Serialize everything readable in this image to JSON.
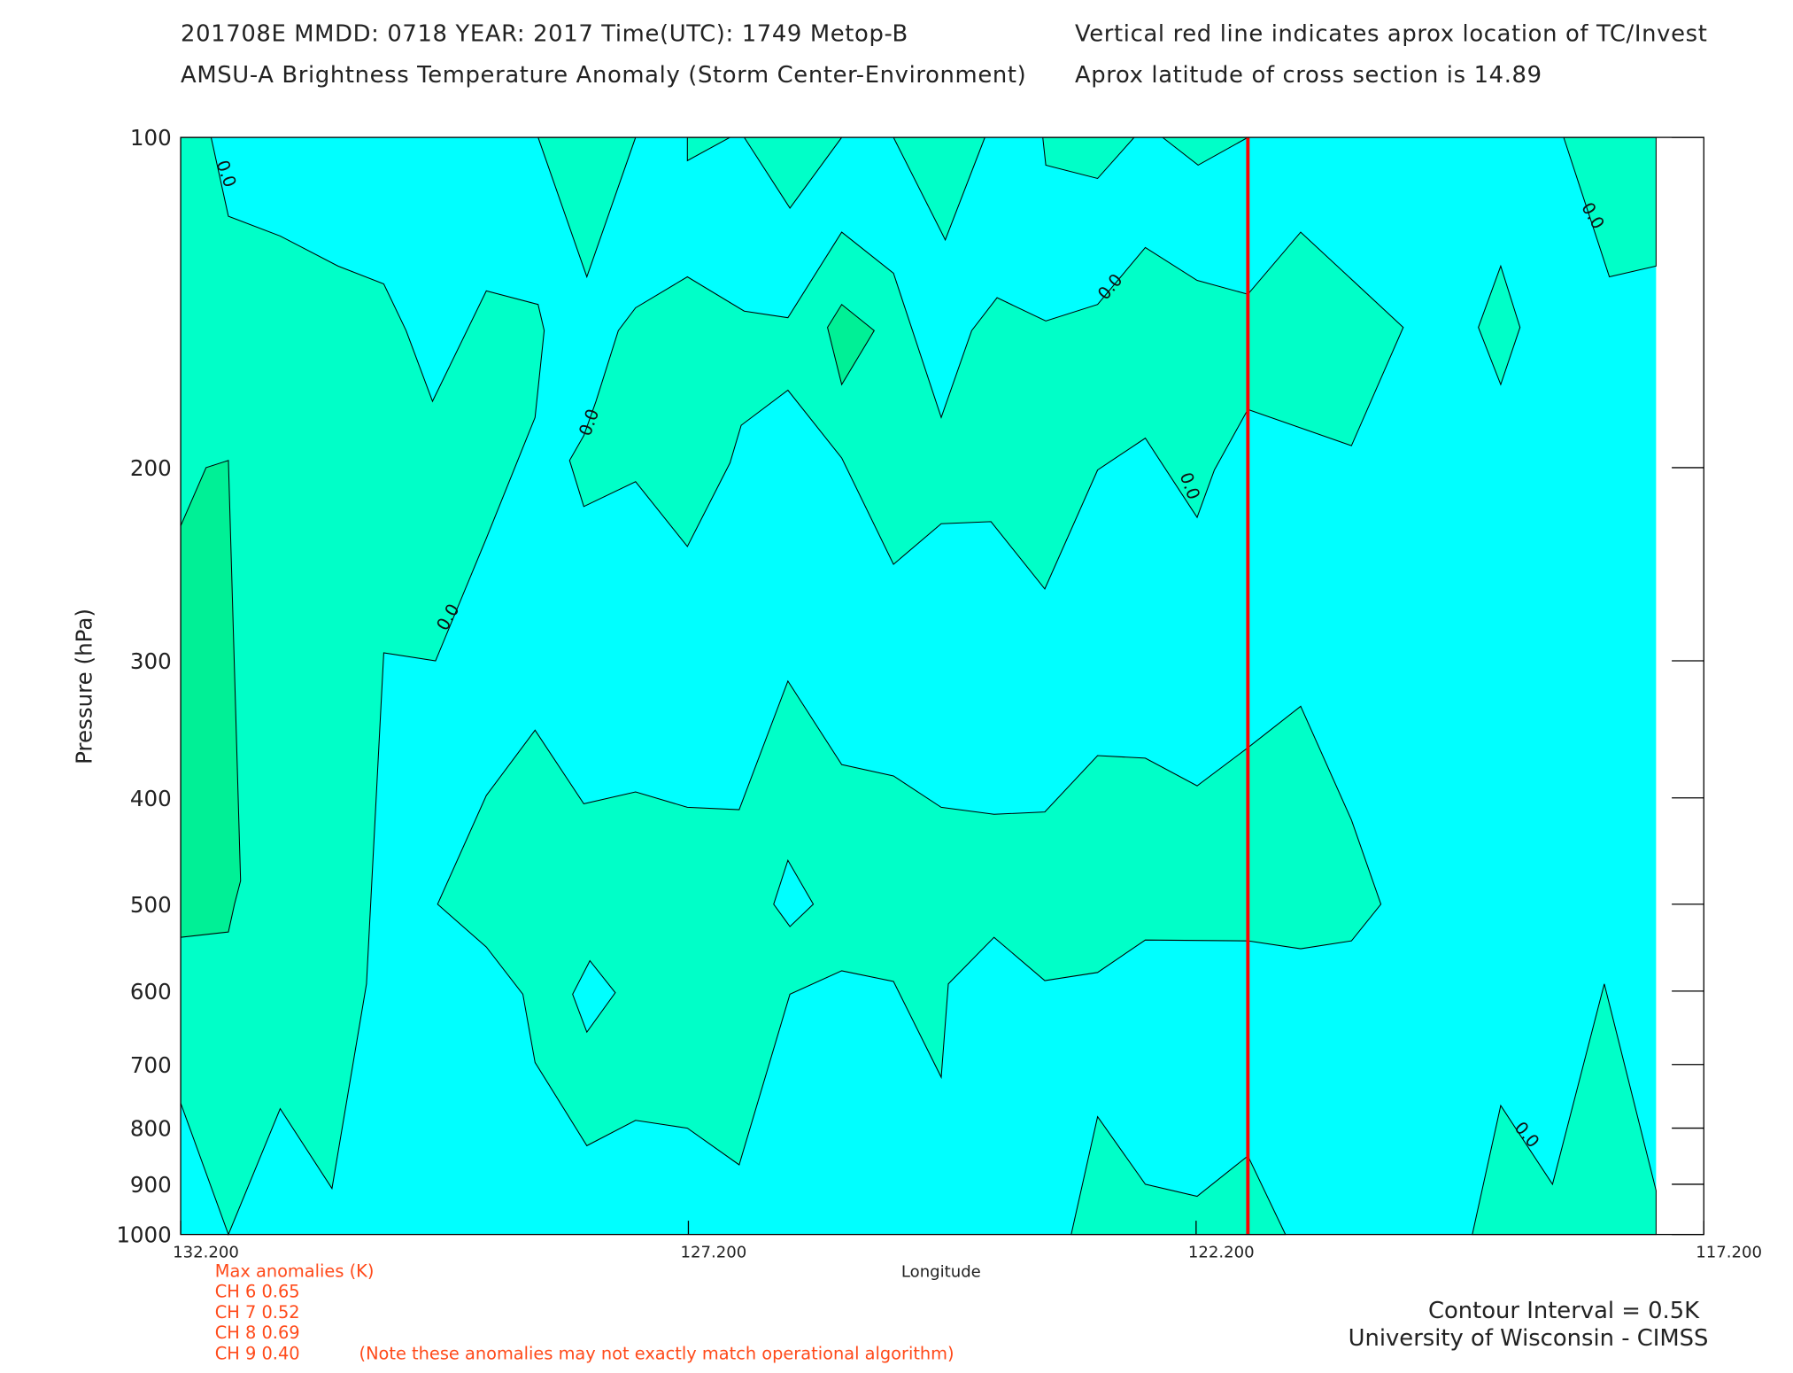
{
  "chart_data": {
    "type": "contour",
    "title": "201708E  MMDD: 0718 YEAR: 2017 Time(UTC): 1749 Metop-B",
    "subtitle": "AMSU-A Brightness Temperature Anomaly (Storm Center-Environment)",
    "note_line": "Vertical red line indicates aprox location of TC/Invest",
    "note_latitude": "Aprox latitude of cross section is 14.89",
    "x_label": "Longitude",
    "y_label": "Pressure (hPa)",
    "xlim": [
      132.2,
      117.2
    ],
    "xticks": [
      {
        "value": 132.2,
        "label": "132.200"
      },
      {
        "value": 127.2,
        "label": "127.200"
      },
      {
        "value": 122.2,
        "label": "122.200"
      },
      {
        "value": 117.2,
        "label": "117.200"
      }
    ],
    "ylim": [
      100,
      1000
    ],
    "y_scale": "log",
    "y_reversed": true,
    "yticks": [
      100,
      200,
      300,
      400,
      500,
      600,
      700,
      800,
      900,
      1000
    ],
    "field_extent": [
      132.2,
      117.67
    ],
    "background_color": "#00ffff",
    "regions": [
      {
        "level": 0.0,
        "color": "#00ffc8",
        "points": [
          [
            132.2,
            100
          ],
          [
            131.9,
            100
          ],
          [
            131.73,
            118
          ],
          [
            131.22,
            123
          ],
          [
            130.65,
            131
          ],
          [
            130.2,
            136
          ],
          [
            129.98,
            150
          ],
          [
            129.72,
            174
          ],
          [
            129.19,
            138
          ],
          [
            128.68,
            142
          ],
          [
            128.62,
            150
          ],
          [
            128.71,
            180
          ],
          [
            129.19,
            232
          ],
          [
            129.69,
            300
          ],
          [
            130.2,
            295
          ],
          [
            130.37,
            591
          ],
          [
            130.71,
            908
          ],
          [
            131.22,
            768
          ],
          [
            131.73,
            1000
          ],
          [
            132.2,
            759
          ]
        ]
      },
      {
        "level": 0.5,
        "color": "#00f096",
        "points": [
          [
            132.2,
            226
          ],
          [
            131.95,
            200
          ],
          [
            131.73,
            197
          ],
          [
            131.61,
            476
          ],
          [
            131.67,
            500
          ],
          [
            131.73,
            530
          ],
          [
            132.2,
            536
          ]
        ]
      },
      {
        "level": 0.0,
        "color": "#00ffc8",
        "points": [
          [
            128.68,
            100
          ],
          [
            128.2,
            134
          ],
          [
            127.72,
            100
          ]
        ]
      },
      {
        "level": 0.0,
        "color": "#00ffc8",
        "points": [
          [
            127.21,
            100
          ],
          [
            127.21,
            105
          ],
          [
            126.79,
            100
          ]
        ]
      },
      {
        "level": 0.0,
        "color": "#00ffc8",
        "points": [
          [
            126.65,
            100
          ],
          [
            126.2,
            116
          ],
          [
            125.69,
            100
          ]
        ]
      },
      {
        "level": 0.0,
        "color": "#00ffc8",
        "points": [
          [
            125.18,
            100
          ],
          [
            124.67,
            124
          ],
          [
            124.28,
            100
          ]
        ]
      },
      {
        "level": 0.0,
        "color": "#00ffc8",
        "points": [
          [
            123.71,
            100
          ],
          [
            123.68,
            106
          ],
          [
            123.17,
            109
          ],
          [
            122.81,
            100
          ]
        ]
      },
      {
        "level": 0.0,
        "color": "#00ffc8",
        "points": [
          [
            122.53,
            100
          ],
          [
            122.18,
            106
          ],
          [
            121.69,
            100
          ]
        ]
      },
      {
        "level": 0.0,
        "color": "#00ffc8",
        "points": [
          [
            118.58,
            100
          ],
          [
            118.13,
            134
          ],
          [
            117.67,
            131
          ],
          [
            117.67,
            100
          ]
        ]
      },
      {
        "level": 0.0,
        "color": "#00ffc8",
        "points": [
          [
            128.37,
            197
          ],
          [
            128.23,
            217
          ],
          [
            127.72,
            206
          ],
          [
            127.21,
            236
          ],
          [
            126.79,
            198
          ],
          [
            126.68,
            183
          ],
          [
            126.22,
            170
          ],
          [
            125.69,
            196
          ],
          [
            125.18,
            245
          ],
          [
            124.71,
            225
          ],
          [
            124.22,
            224
          ],
          [
            123.69,
            258
          ],
          [
            123.17,
            201
          ],
          [
            122.7,
            188
          ],
          [
            122.19,
            222
          ],
          [
            122.02,
            201
          ],
          [
            121.69,
            177
          ],
          [
            120.67,
            191
          ],
          [
            120.16,
            149
          ],
          [
            121.17,
            122
          ],
          [
            121.69,
            139
          ],
          [
            122.19,
            135
          ],
          [
            122.7,
            126
          ],
          [
            123.17,
            142
          ],
          [
            123.68,
            147
          ],
          [
            124.16,
            140
          ],
          [
            124.41,
            150
          ],
          [
            124.71,
            180
          ],
          [
            125.18,
            133
          ],
          [
            125.69,
            122
          ],
          [
            126.22,
            146
          ],
          [
            126.65,
            144
          ],
          [
            127.21,
            134
          ],
          [
            127.72,
            143
          ],
          [
            127.89,
            150
          ],
          [
            128.11,
            174
          ],
          [
            128.23,
            187
          ]
        ]
      },
      {
        "level": 0.5,
        "color": "#00f096",
        "points": [
          [
            125.83,
            149
          ],
          [
            125.69,
            142
          ],
          [
            125.37,
            150
          ],
          [
            125.69,
            168
          ]
        ]
      },
      {
        "level": 0.0,
        "color": "#00ffc8",
        "points": [
          [
            119.42,
            149
          ],
          [
            119.2,
            131
          ],
          [
            119.01,
            149
          ],
          [
            119.2,
            168
          ]
        ]
      },
      {
        "level": 0.0,
        "color": "#00ffc8",
        "points": [
          [
            129.67,
            500
          ],
          [
            129.19,
            398
          ],
          [
            128.71,
            347
          ],
          [
            128.23,
            405
          ],
          [
            127.72,
            395
          ],
          [
            127.21,
            408
          ],
          [
            126.7,
            410
          ],
          [
            126.22,
            313
          ],
          [
            125.69,
            373
          ],
          [
            125.18,
            382
          ],
          [
            124.71,
            408
          ],
          [
            124.19,
            414
          ],
          [
            123.69,
            412
          ],
          [
            123.17,
            366
          ],
          [
            122.7,
            368
          ],
          [
            122.19,
            390
          ],
          [
            121.69,
            360
          ],
          [
            121.17,
            330
          ],
          [
            120.67,
            419
          ],
          [
            120.38,
            500
          ],
          [
            120.67,
            540
          ],
          [
            121.17,
            549
          ],
          [
            121.69,
            540
          ],
          [
            122.7,
            539
          ],
          [
            123.17,
            577
          ],
          [
            123.69,
            587
          ],
          [
            124.19,
            536
          ],
          [
            124.64,
            591
          ],
          [
            124.71,
            719
          ],
          [
            125.18,
            588
          ],
          [
            125.69,
            575
          ],
          [
            126.2,
            604
          ],
          [
            126.7,
            864
          ],
          [
            127.21,
            800
          ],
          [
            127.72,
            787
          ],
          [
            128.2,
            830
          ],
          [
            128.71,
            697
          ],
          [
            128.83,
            604
          ],
          [
            129.19,
            547
          ]
        ]
      },
      {
        "level": -0.5,
        "color": "#00ffff",
        "points": [
          [
            126.22,
            456
          ],
          [
            125.97,
            500
          ],
          [
            126.2,
            524
          ],
          [
            126.36,
            500
          ]
        ]
      },
      {
        "level": -0.5,
        "color": "#00ffff",
        "points": [
          [
            128.17,
            563
          ],
          [
            127.92,
            602
          ],
          [
            128.2,
            654
          ],
          [
            128.34,
            604
          ]
        ]
      },
      {
        "level": 0.0,
        "color": "#00ffc8",
        "points": [
          [
            123.43,
            1000
          ],
          [
            123.17,
            781
          ],
          [
            122.7,
            900
          ],
          [
            122.19,
            923
          ],
          [
            121.69,
            848
          ],
          [
            121.32,
            1000
          ]
        ]
      },
      {
        "level": 0.0,
        "color": "#00ffc8",
        "points": [
          [
            119.48,
            1000
          ],
          [
            119.2,
            763
          ],
          [
            118.69,
            900
          ],
          [
            118.18,
            591
          ],
          [
            117.67,
            912
          ],
          [
            117.67,
            1000
          ]
        ]
      }
    ],
    "contour_label": "0.0",
    "contour_label_points": [
      [
        131.76,
        108
      ],
      [
        129.56,
        274
      ],
      [
        128.17,
        182
      ],
      [
        123.04,
        137
      ],
      [
        122.27,
        208
      ],
      [
        118.3,
        118
      ],
      [
        118.95,
        812
      ]
    ],
    "tc_longitude": 121.69,
    "tc_line_color": "#ff0000",
    "max_anomalies_title": "Max anomalies (K)",
    "max_anomalies": [
      "CH 6  0.65",
      "CH 7  0.52",
      "CH 8  0.69",
      "CH 9  0.40"
    ],
    "anomaly_note": "(Note these anomalies may not exactly match operational algorithm)",
    "contour_interval": "Contour Interval = 0.5K",
    "credit": "University of Wisconsin - CIMSS"
  }
}
